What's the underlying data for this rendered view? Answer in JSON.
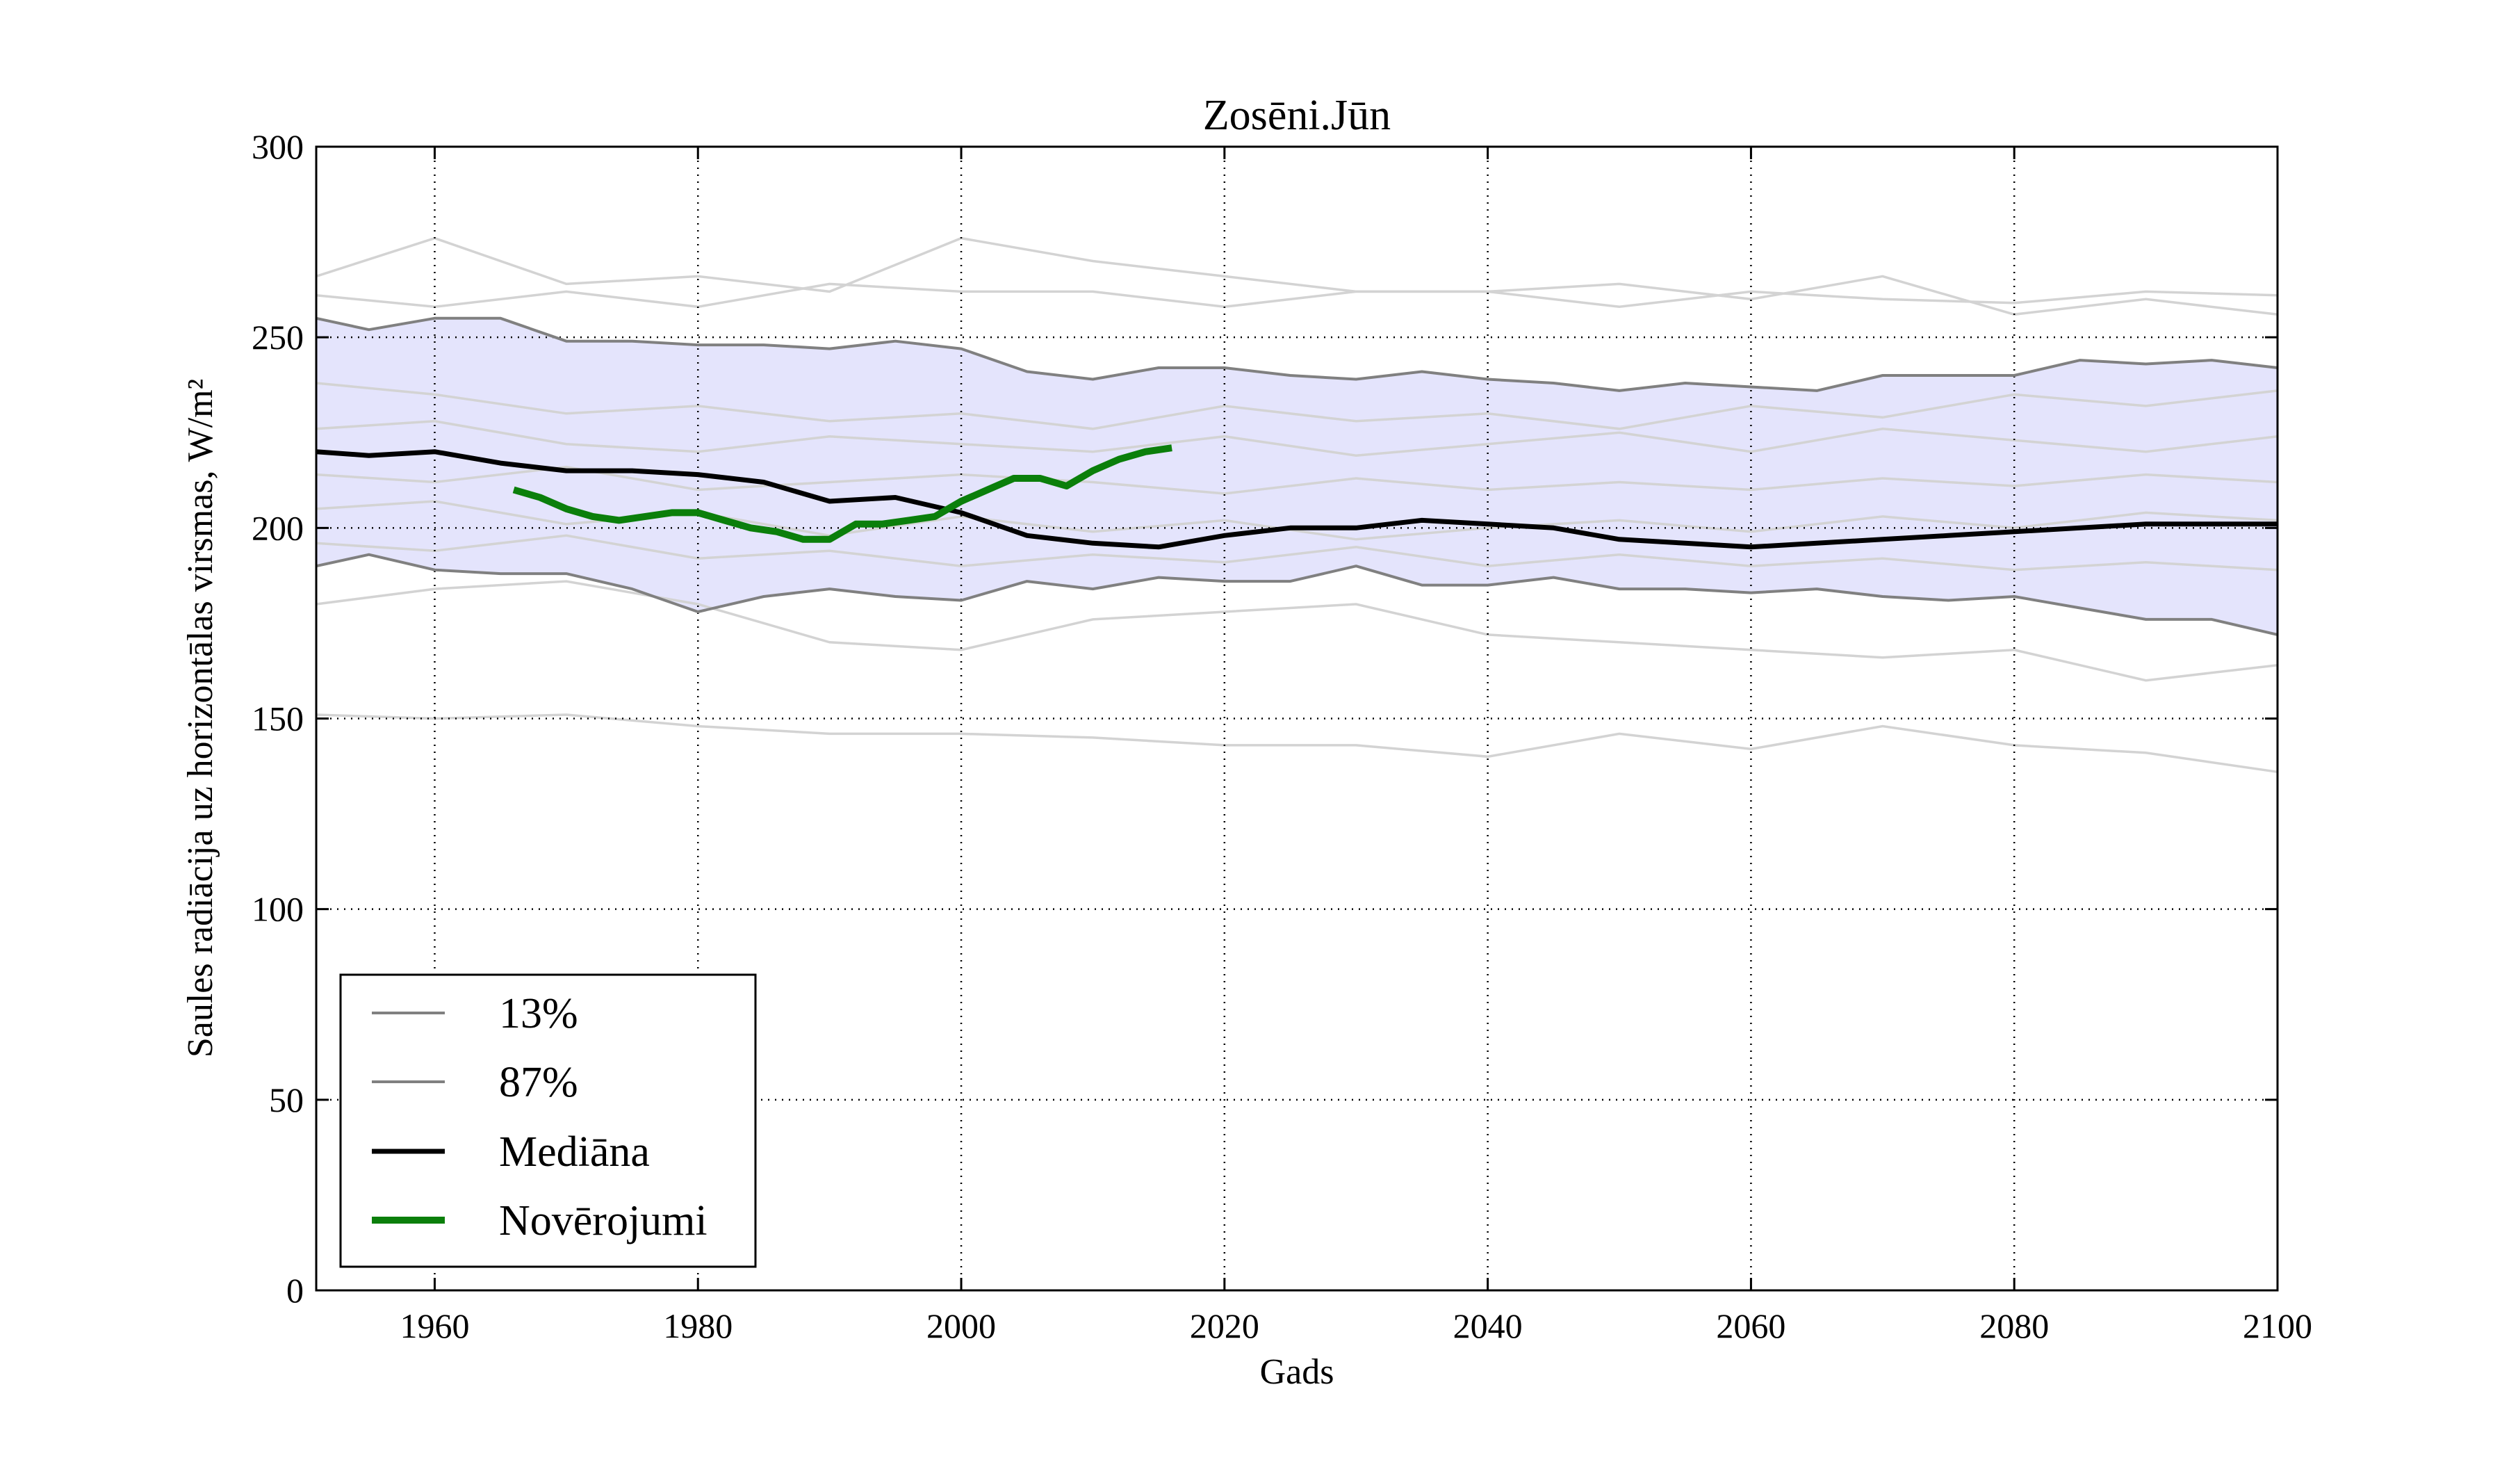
{
  "chart_data": {
    "type": "line",
    "title": "Zosēni.Jūn",
    "xlabel": "Gads",
    "ylabel": "Saules radiācija uz horizontālas virsmas, W/m²",
    "xlim": [
      1951,
      2100
    ],
    "ylim": [
      0,
      300
    ],
    "xticks": [
      1960,
      1980,
      2000,
      2020,
      2040,
      2060,
      2080,
      2100
    ],
    "yticks": [
      0,
      50,
      100,
      150,
      200,
      250,
      300
    ],
    "grid": true,
    "legend_position": "lower-left",
    "colors": {
      "ensemble": "#d3d3d3",
      "band_fill": "#e4e4fc",
      "percentile": "#808080",
      "median": "#000000",
      "observations": "#0b7f0b"
    },
    "legend": [
      {
        "label": "13%",
        "style": "percentile"
      },
      {
        "label": "87%",
        "style": "percentile"
      },
      {
        "label": "Mediāna",
        "style": "median"
      },
      {
        "label": "Novērojumi",
        "style": "observations"
      }
    ],
    "series": [
      {
        "name": "13%",
        "x": [
          1951,
          1955,
          1960,
          1965,
          1970,
          1975,
          1980,
          1985,
          1990,
          1995,
          2000,
          2005,
          2010,
          2015,
          2020,
          2025,
          2030,
          2035,
          2040,
          2045,
          2050,
          2055,
          2060,
          2065,
          2070,
          2075,
          2080,
          2085,
          2090,
          2095,
          2100
        ],
        "y": [
          190,
          193,
          189,
          188,
          188,
          184,
          178,
          182,
          184,
          182,
          181,
          186,
          184,
          187,
          186,
          186,
          190,
          185,
          185,
          187,
          184,
          184,
          183,
          184,
          182,
          181,
          182,
          179,
          176,
          176,
          172
        ]
      },
      {
        "name": "87%",
        "x": [
          1951,
          1955,
          1960,
          1965,
          1970,
          1975,
          1980,
          1985,
          1990,
          1995,
          2000,
          2005,
          2010,
          2015,
          2020,
          2025,
          2030,
          2035,
          2040,
          2045,
          2050,
          2055,
          2060,
          2065,
          2070,
          2075,
          2080,
          2085,
          2090,
          2095,
          2100
        ],
        "y": [
          255,
          252,
          255,
          255,
          249,
          249,
          248,
          248,
          247,
          249,
          247,
          241,
          239,
          242,
          242,
          240,
          239,
          241,
          239,
          238,
          236,
          238,
          237,
          236,
          240,
          240,
          240,
          244,
          243,
          244,
          242
        ]
      },
      {
        "name": "Mediāna",
        "x": [
          1951,
          1955,
          1960,
          1965,
          1970,
          1975,
          1980,
          1985,
          1990,
          1995,
          2000,
          2005,
          2010,
          2015,
          2020,
          2025,
          2030,
          2035,
          2040,
          2045,
          2050,
          2055,
          2060,
          2065,
          2070,
          2075,
          2080,
          2085,
          2090,
          2095,
          2100
        ],
        "y": [
          220,
          219,
          220,
          217,
          215,
          215,
          214,
          212,
          207,
          208,
          204,
          198,
          196,
          195,
          198,
          200,
          200,
          202,
          201,
          200,
          197,
          196,
          195,
          196,
          197,
          198,
          199,
          200,
          201,
          201,
          201
        ]
      },
      {
        "name": "Novērojumi",
        "x": [
          1966,
          1968,
          1970,
          1972,
          1974,
          1976,
          1978,
          1980,
          1982,
          1984,
          1986,
          1988,
          1990,
          1992,
          1994,
          1996,
          1998,
          2000,
          2002,
          2004,
          2006,
          2008,
          2010,
          2012,
          2014,
          2016
        ],
        "y": [
          210,
          208,
          205,
          203,
          202,
          203,
          204,
          204,
          202,
          200,
          199,
          197,
          197,
          201,
          201,
          202,
          203,
          207,
          210,
          213,
          213,
          211,
          215,
          218,
          220,
          221
        ]
      }
    ],
    "ensemble": [
      {
        "x": [
          1951,
          1960,
          1970,
          1980,
          1990,
          2000,
          2010,
          2020,
          2030,
          2040,
          2050,
          2060,
          2070,
          2080,
          2090,
          2100
        ],
        "y": [
          266,
          276,
          264,
          266,
          262,
          276,
          270,
          266,
          262,
          262,
          264,
          260,
          266,
          256,
          260,
          256
        ]
      },
      {
        "x": [
          1951,
          1960,
          1970,
          1980,
          1990,
          2000,
          2010,
          2020,
          2030,
          2040,
          2050,
          2060,
          2070,
          2080,
          2090,
          2100
        ],
        "y": [
          261,
          258,
          262,
          258,
          264,
          262,
          262,
          258,
          262,
          262,
          258,
          262,
          260,
          259,
          262,
          261
        ]
      },
      {
        "x": [
          1951,
          1960,
          1970,
          1980,
          1990,
          2000,
          2010,
          2020,
          2030,
          2040,
          2050,
          2060,
          2070,
          2080,
          2090,
          2100
        ],
        "y": [
          238,
          235,
          230,
          232,
          228,
          230,
          226,
          232,
          228,
          230,
          226,
          232,
          229,
          235,
          232,
          236
        ]
      },
      {
        "x": [
          1951,
          1960,
          1970,
          1980,
          1990,
          2000,
          2010,
          2020,
          2030,
          2040,
          2050,
          2060,
          2070,
          2080,
          2090,
          2100
        ],
        "y": [
          226,
          228,
          222,
          220,
          224,
          222,
          220,
          224,
          219,
          222,
          225,
          220,
          226,
          223,
          220,
          224
        ]
      },
      {
        "x": [
          1951,
          1960,
          1970,
          1980,
          1990,
          2000,
          2010,
          2020,
          2030,
          2040,
          2050,
          2060,
          2070,
          2080,
          2090,
          2100
        ],
        "y": [
          214,
          212,
          216,
          210,
          212,
          214,
          212,
          209,
          213,
          210,
          212,
          210,
          213,
          211,
          214,
          212
        ]
      },
      {
        "x": [
          1951,
          1960,
          1970,
          1980,
          1990,
          2000,
          2010,
          2020,
          2030,
          2040,
          2050,
          2060,
          2070,
          2080,
          2090,
          2100
        ],
        "y": [
          205,
          207,
          201,
          204,
          198,
          203,
          199,
          202,
          197,
          200,
          202,
          199,
          203,
          200,
          204,
          202
        ]
      },
      {
        "x": [
          1951,
          1960,
          1970,
          1980,
          1990,
          2000,
          2010,
          2020,
          2030,
          2040,
          2050,
          2060,
          2070,
          2080,
          2090,
          2100
        ],
        "y": [
          196,
          194,
          198,
          192,
          194,
          190,
          193,
          191,
          195,
          190,
          193,
          190,
          192,
          189,
          191,
          189
        ]
      },
      {
        "x": [
          1951,
          1960,
          1970,
          1980,
          1990,
          2000,
          2010,
          2020,
          2030,
          2040,
          2050,
          2060,
          2070,
          2080,
          2090,
          2100
        ],
        "y": [
          180,
          184,
          186,
          180,
          170,
          168,
          176,
          178,
          180,
          172,
          170,
          168,
          166,
          168,
          160,
          164
        ]
      },
      {
        "x": [
          1951,
          1960,
          1970,
          1980,
          1990,
          2000,
          2010,
          2020,
          2030,
          2040,
          2050,
          2060,
          2070,
          2080,
          2090,
          2100
        ],
        "y": [
          151,
          150,
          151,
          148,
          146,
          146,
          145,
          143,
          143,
          140,
          146,
          142,
          148,
          143,
          141,
          136
        ]
      }
    ]
  }
}
